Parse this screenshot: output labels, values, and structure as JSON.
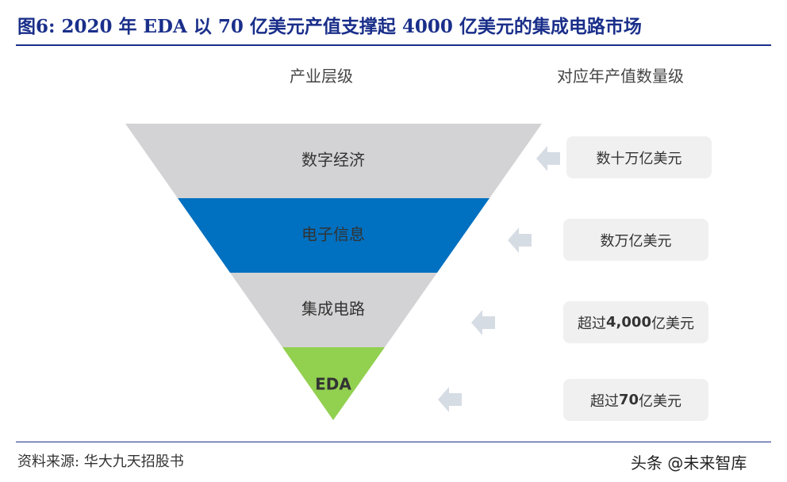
{
  "title": "图6:  2020 年 EDA 以 70 亿美元产值支撑起 4000 亿美元的集成电路市场",
  "headers": {
    "left": "产业层级",
    "right": "对应年产值数量级"
  },
  "layers": [
    {
      "label": "数字经济",
      "color": "#d3d3d5",
      "text_color": "#333333"
    },
    {
      "label": "电子信息",
      "color": "#0070c0",
      "text_color": "#222222"
    },
    {
      "label": "集成电路",
      "color": "#d3d3d5",
      "text_color": "#333333"
    },
    {
      "label": "EDA",
      "color": "#92d050",
      "text_color": "#222222"
    }
  ],
  "values": [
    {
      "pre": "数十万亿美元",
      "bold": "",
      "post": ""
    },
    {
      "pre": "数万亿美元",
      "bold": "",
      "post": ""
    },
    {
      "pre": "超过",
      "bold": "4,000",
      "post": "亿美元"
    },
    {
      "pre": "超过",
      "bold": "70",
      "post": "亿美元"
    }
  ],
  "arrow_color": "#d6dce4",
  "source": "资料来源:  华大九天招股书",
  "watermark": "头条 @未来智库"
}
